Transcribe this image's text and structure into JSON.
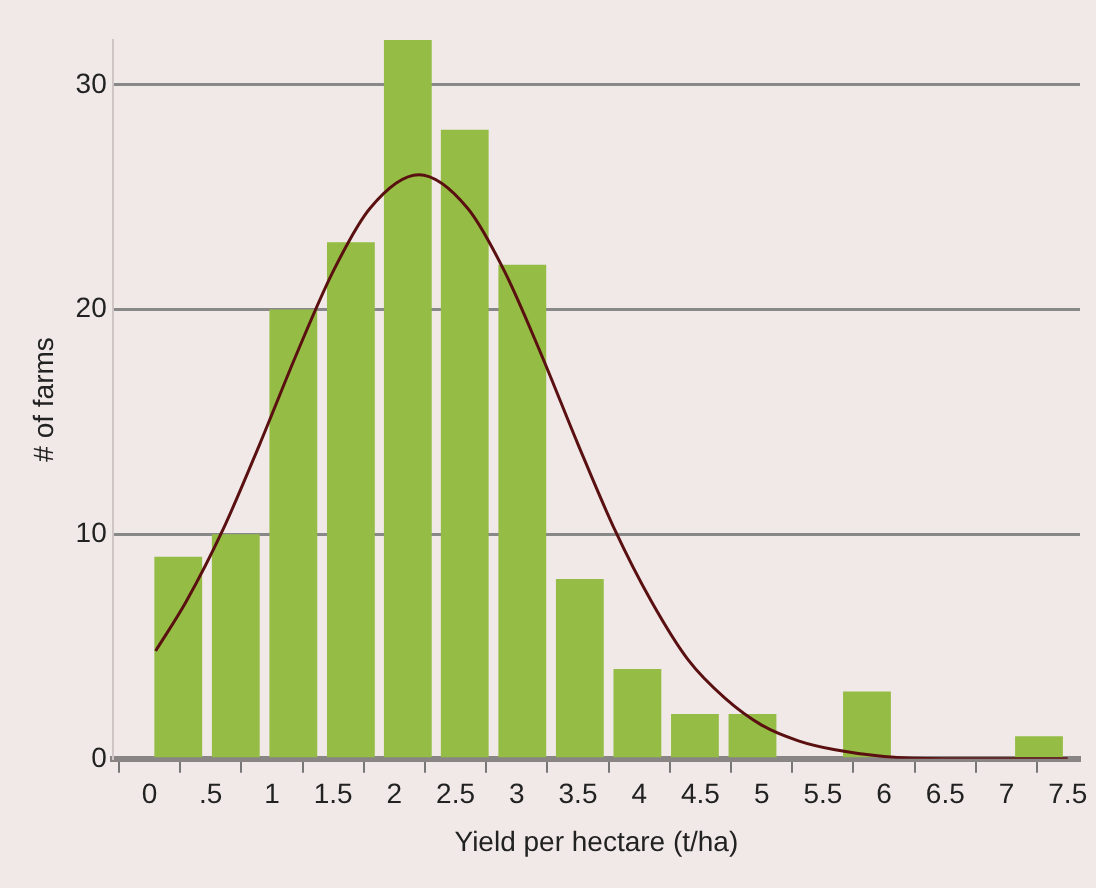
{
  "chart_data": {
    "type": "histogram",
    "xlabel": "Yield per hectare (t/ha)",
    "ylabel": "# of farms",
    "bins": [
      0,
      0.47,
      0.94,
      1.41,
      1.88,
      2.34,
      2.81,
      3.28,
      3.75,
      4.22,
      4.69,
      5.16,
      5.63,
      6.09,
      7.03,
      7.5
    ],
    "series": [
      {
        "color": "#95bd45",
        "values": [
          9,
          10,
          20,
          23,
          32,
          28,
          22,
          8,
          4,
          2,
          2,
          0,
          3,
          0,
          1
        ]
      },
      {
        "type": "line",
        "color": "#5a1010",
        "marker": "none",
        "x": [
          0.05,
          0.3,
          0.6,
          0.9,
          1.2,
          1.5,
          1.8,
          2.2,
          2.6,
          2.9,
          3.2,
          3.5,
          3.8,
          4.1,
          4.4,
          4.7,
          5.0,
          5.3,
          5.6,
          6.0,
          6.5,
          7.5
        ],
        "values": [
          4.8,
          7.0,
          10.2,
          14.0,
          18.0,
          21.7,
          24.5,
          26,
          24.5,
          21.7,
          18.0,
          14.0,
          10.2,
          7.0,
          4.4,
          2.7,
          1.5,
          0.8,
          0.4,
          0.1,
          0,
          0
        ]
      }
    ],
    "xlim": [
      -0.3,
      7.6
    ],
    "ylim": [
      0,
      32
    ],
    "xticks": [
      0,
      {
        "value": 0.5,
        "label": ".5"
      },
      1,
      1.5,
      2,
      2.5,
      3,
      3.5,
      4,
      4.5,
      5,
      5.5,
      6,
      6.5,
      7,
      7.5
    ],
    "yticks": [
      0,
      10,
      20,
      30
    ],
    "grid": "y",
    "legend": false
  }
}
